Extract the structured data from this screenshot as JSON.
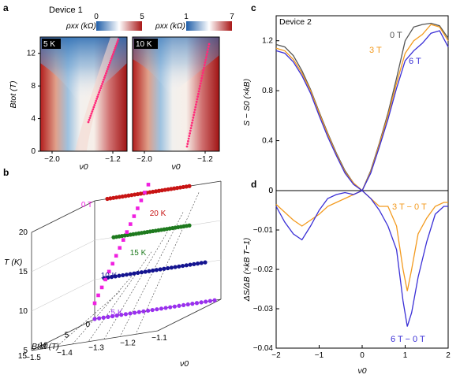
{
  "panels": {
    "a": {
      "letter": "a",
      "device": "Device 1",
      "cbar1": {
        "label": "ρxx (kΩ)",
        "min": "0",
        "max": "5"
      },
      "cbar2": {
        "label": "ρxx (kΩ)",
        "min": "1",
        "max": "7"
      },
      "heatmap1": {
        "temp_label": "5 K"
      },
      "heatmap2": {
        "temp_label": "10 K"
      },
      "ylabel": "Btot (T)",
      "xlabel": "ν0",
      "yticks": [
        "0",
        "4",
        "8",
        "12"
      ],
      "xticks": [
        "−2.0",
        "−1.2"
      ]
    },
    "b": {
      "letter": "b",
      "zlabel": "T (K)",
      "blabel": "Btot (T)",
      "nulabel": "ν0",
      "zticks": [
        "5",
        "10",
        "15",
        "20"
      ],
      "bticks": [
        "0",
        "5",
        "10",
        "15"
      ],
      "nuticks": [
        "−1.5",
        "−1.4",
        "−1.3",
        "−1.2",
        "−1.1"
      ],
      "curve_labels": [
        "0 T",
        "20 K",
        "15 K",
        "10 K",
        "5 K"
      ]
    },
    "c": {
      "letter": "c",
      "device": "Device 2",
      "ylabel": "S − S0 (×kB)",
      "yticks": [
        "0",
        "0.4",
        "0.8",
        "1.2"
      ],
      "labels": [
        "0 T",
        "3 T",
        "6 T"
      ]
    },
    "d": {
      "letter": "d",
      "ylabel": "ΔS/ΔB (×kB T−1)",
      "xlabel": "ν0",
      "yticks": [
        "0",
        "−0.01",
        "−0.02",
        "−0.03",
        "−0.04"
      ],
      "xticks": [
        "−2",
        "−1",
        "0",
        "1",
        "2"
      ],
      "labels": [
        "3 T − 0 T",
        "6 T − 0 T"
      ]
    }
  },
  "colors": {
    "gray": "#555555",
    "orange": "#f39a1e",
    "blue": "#3a2fd6",
    "magenta": "#f020e0",
    "red": "#c81414",
    "green": "#1e7a1e",
    "navy": "#141490",
    "purple": "#9a2ff0",
    "heat_red": "#b81f1f",
    "heat_blue": "#2f6fb4",
    "pink_dots": "#ff2a7a"
  },
  "chart_data": [
    {
      "type": "line",
      "panel": "c",
      "xlabel": "",
      "ylabel": "S − S0 (×kB)",
      "xlim": [
        -2,
        2
      ],
      "ylim": [
        0,
        1.4
      ],
      "x": [
        -2,
        -1.8,
        -1.6,
        -1.4,
        -1.2,
        -1.0,
        -0.8,
        -0.6,
        -0.4,
        -0.2,
        0,
        0.2,
        0.4,
        0.6,
        0.8,
        1.0,
        1.2,
        1.4,
        1.6,
        1.8,
        2.0
      ],
      "series": [
        {
          "name": "0 T",
          "color": "gray",
          "values": [
            1.17,
            1.15,
            1.08,
            0.96,
            0.81,
            0.63,
            0.46,
            0.3,
            0.16,
            0.06,
            0.0,
            0.16,
            0.38,
            0.62,
            0.9,
            1.2,
            1.31,
            1.33,
            1.34,
            1.32,
            1.22
          ]
        },
        {
          "name": "3 T",
          "color": "orange",
          "values": [
            1.14,
            1.12,
            1.05,
            0.94,
            0.8,
            0.62,
            0.45,
            0.29,
            0.15,
            0.06,
            0.0,
            0.15,
            0.37,
            0.6,
            0.86,
            1.1,
            1.2,
            1.25,
            1.33,
            1.31,
            1.2
          ]
        },
        {
          "name": "6 T",
          "color": "blue",
          "values": [
            1.12,
            1.1,
            1.03,
            0.92,
            0.78,
            0.6,
            0.43,
            0.28,
            0.14,
            0.05,
            0.0,
            0.14,
            0.35,
            0.57,
            0.82,
            1.04,
            1.12,
            1.18,
            1.26,
            1.28,
            1.15
          ]
        }
      ]
    },
    {
      "type": "line",
      "panel": "d",
      "xlabel": "ν0",
      "ylabel": "ΔS/ΔB (×kB T−1)",
      "xlim": [
        -2,
        2
      ],
      "ylim": [
        -0.04,
        0.0
      ],
      "x": [
        -2,
        -1.8,
        -1.6,
        -1.4,
        -1.2,
        -1.0,
        -0.8,
        -0.6,
        -0.4,
        -0.2,
        0,
        0.2,
        0.4,
        0.6,
        0.8,
        0.95,
        1.05,
        1.15,
        1.3,
        1.5,
        1.7,
        1.9,
        2.0
      ],
      "series": [
        {
          "name": "3 T − 0 T",
          "color": "orange",
          "values": [
            -0.0035,
            -0.0055,
            -0.0075,
            -0.009,
            -0.0075,
            -0.006,
            -0.004,
            -0.003,
            -0.002,
            -0.001,
            0.0,
            -0.002,
            -0.004,
            -0.004,
            -0.009,
            -0.02,
            -0.0255,
            -0.02,
            -0.011,
            -0.007,
            -0.004,
            -0.003,
            -0.003
          ]
        },
        {
          "name": "6 T − 0 T",
          "color": "blue",
          "values": [
            -0.004,
            -0.008,
            -0.011,
            -0.0125,
            -0.009,
            -0.005,
            -0.002,
            -0.001,
            -0.0005,
            -0.001,
            0.0,
            -0.002,
            -0.005,
            -0.009,
            -0.015,
            -0.028,
            -0.0345,
            -0.031,
            -0.022,
            -0.013,
            -0.006,
            -0.004,
            -0.004
          ]
        }
      ]
    },
    {
      "type": "scatter",
      "panel": "b",
      "xlabel": "ν0",
      "ylabel": "T (K)",
      "zlabel": "Btot (T)",
      "nu_range": [
        -1.5,
        -1.1
      ],
      "b_range": [
        0,
        15
      ],
      "t_range": [
        5,
        20
      ],
      "series": [
        {
          "name": "0 T",
          "color": "magenta"
        },
        {
          "name": "20 K",
          "color": "red"
        },
        {
          "name": "15 K",
          "color": "green"
        },
        {
          "name": "10 K",
          "color": "navy"
        },
        {
          "name": "5 K",
          "color": "purple"
        }
      ]
    }
  ]
}
